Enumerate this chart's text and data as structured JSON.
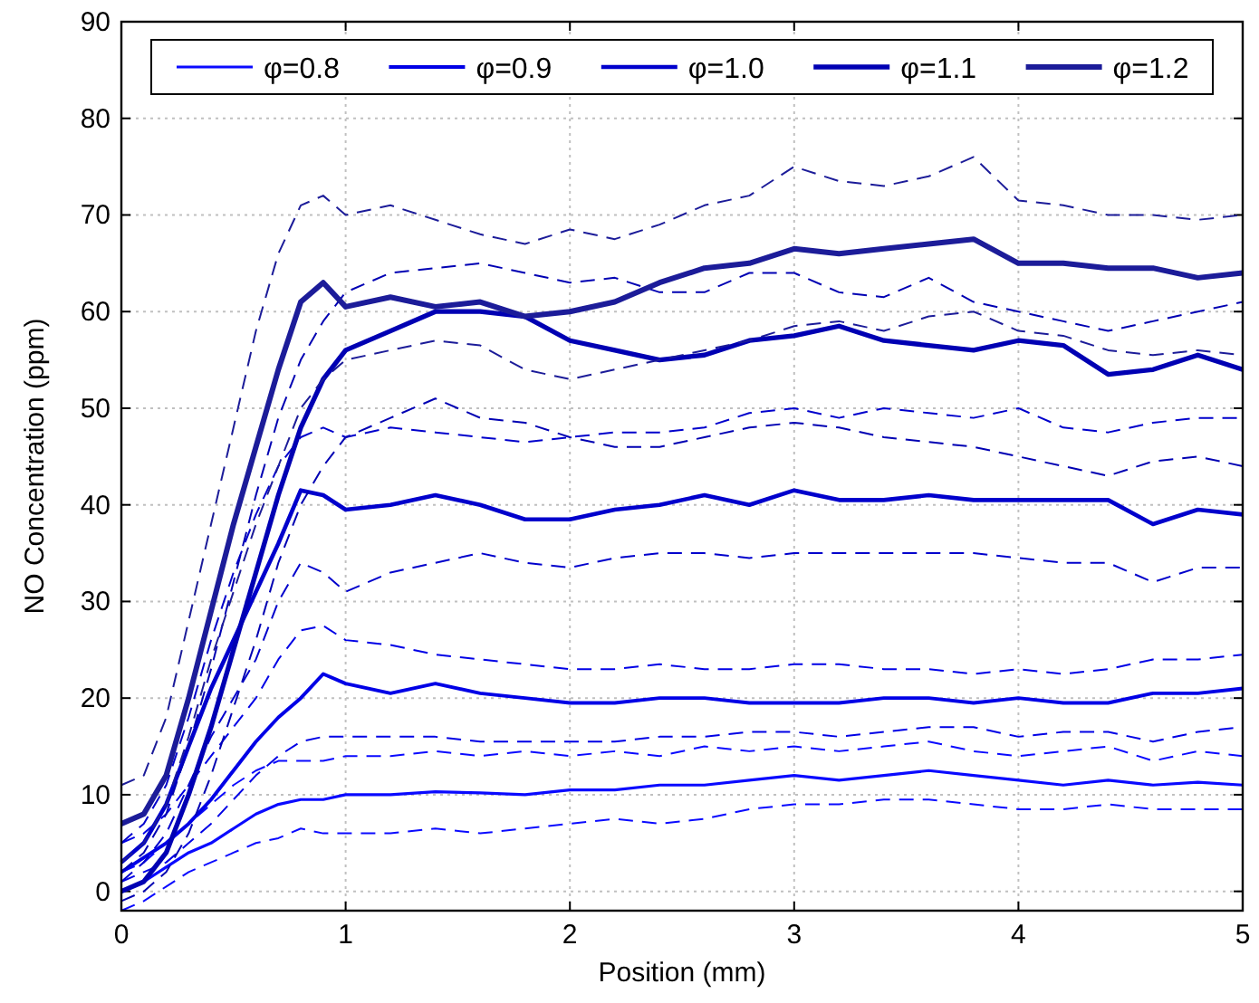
{
  "chart_data": {
    "type": "line",
    "xlabel": "Position (mm)",
    "ylabel": "NO Concentration (ppm)",
    "x": [
      0,
      0.1,
      0.2,
      0.3,
      0.4,
      0.5,
      0.6,
      0.7,
      0.8,
      0.9,
      1.0,
      1.2,
      1.4,
      1.6,
      1.8,
      2.0,
      2.2,
      2.4,
      2.6,
      2.8,
      3.0,
      3.2,
      3.4,
      3.6,
      3.8,
      4.0,
      4.2,
      4.4,
      4.6,
      4.8,
      5.0
    ],
    "xlim": [
      0,
      5
    ],
    "xticks": [
      0,
      1,
      2,
      3,
      4,
      5
    ],
    "ylim": [
      -2,
      90
    ],
    "yticks": [
      0,
      10,
      20,
      30,
      40,
      50,
      60,
      70,
      80,
      90
    ],
    "grid": true,
    "legend": "top",
    "line_style": "solid",
    "marker": "none",
    "series": [
      {
        "name": "φ=0.8",
        "color": "#0a0aff",
        "values": [
          0,
          1,
          2.5,
          4,
          5,
          6.5,
          8,
          9,
          9.5,
          9.5,
          10,
          10,
          10.3,
          10.2,
          10,
          10.5,
          10.5,
          11,
          11,
          11.5,
          12,
          11.5,
          12,
          12.5,
          12,
          11.5,
          11,
          11.5,
          11,
          11.3,
          11
        ]
      },
      {
        "color": "#0a0aff",
        "line_style": "dashed",
        "values": [
          -2,
          -1,
          0.5,
          2,
          3,
          4,
          5,
          5.5,
          6.5,
          6,
          6,
          6,
          6.5,
          6,
          6.5,
          7,
          7.5,
          7,
          7.5,
          8.5,
          9,
          9,
          9.5,
          9.5,
          9,
          8.5,
          8.5,
          9,
          8.5,
          8.5,
          8.5
        ]
      },
      {
        "color": "#0a0aff",
        "line_style": "dashed",
        "values": [
          2,
          3,
          5,
          7,
          9,
          11,
          12.5,
          13.5,
          13.5,
          13.5,
          14,
          14,
          14.5,
          14,
          14.5,
          14,
          14.5,
          14,
          15,
          14.5,
          15,
          14.5,
          15,
          15.5,
          14.5,
          14,
          14.5,
          15,
          13.5,
          14.5,
          14
        ]
      },
      {
        "name": "φ=0.9",
        "color": "#0000e6",
        "values": [
          2,
          3.5,
          5,
          7,
          9.5,
          12.5,
          15.5,
          18,
          20,
          22.5,
          21.5,
          20.5,
          21.5,
          20.5,
          20,
          19.5,
          19.5,
          20,
          20,
          19.5,
          19.5,
          19.5,
          20,
          20,
          19.5,
          20,
          19.5,
          19.5,
          20.5,
          20.5,
          21
        ]
      },
      {
        "color": "#0000e6",
        "line_style": "dashed",
        "values": [
          1,
          2,
          3,
          5,
          7,
          9.5,
          12,
          14,
          15.5,
          16,
          16,
          16,
          16,
          15.5,
          15.5,
          15.5,
          15.5,
          16,
          16,
          16.5,
          16.5,
          16,
          16.5,
          17,
          17,
          16,
          16.5,
          16.5,
          15.5,
          16.5,
          17
        ]
      },
      {
        "color": "#0000e6",
        "line_style": "dashed",
        "values": [
          5,
          6,
          8,
          11,
          14,
          17,
          20,
          24,
          27,
          27.5,
          26,
          25.5,
          24.5,
          24,
          23.5,
          23,
          23,
          23.5,
          23,
          23,
          23.5,
          23.5,
          23,
          23,
          22.5,
          23,
          22.5,
          23,
          24,
          24,
          24.5
        ]
      },
      {
        "name": "φ=1.0",
        "color": "#0000cc",
        "values": [
          3,
          5,
          9,
          15,
          21,
          26,
          31,
          36,
          41.5,
          41,
          39.5,
          40,
          41,
          40,
          38.5,
          38.5,
          39.5,
          40,
          41,
          40,
          41.5,
          40.5,
          40.5,
          41,
          40.5,
          40.5,
          40.5,
          40.5,
          38,
          39.5,
          39
        ]
      },
      {
        "color": "#0000cc",
        "line_style": "dashed",
        "values": [
          1,
          3,
          6,
          11,
          16,
          20,
          24,
          30,
          34,
          33,
          31,
          33,
          34,
          35,
          34,
          33.5,
          34.5,
          35,
          35,
          34.5,
          35,
          35,
          35,
          35,
          35,
          34.5,
          34,
          34,
          32,
          33.5,
          33.5
        ]
      },
      {
        "color": "#0000cc",
        "line_style": "dashed",
        "values": [
          5,
          7,
          11,
          18,
          26,
          33,
          39,
          44,
          47,
          48,
          47,
          48,
          47.5,
          47,
          46.5,
          47,
          47.5,
          47.5,
          48,
          49.5,
          50,
          49,
          50,
          49.5,
          49,
          50,
          48,
          47.5,
          48.5,
          49,
          49
        ]
      },
      {
        "name": "φ=1.1",
        "color": "#0000b3",
        "values": [
          0,
          1,
          4,
          10,
          17,
          25,
          33,
          41,
          48,
          53,
          56,
          58,
          60,
          60,
          59.5,
          57,
          56,
          55,
          55.5,
          57,
          57.5,
          58.5,
          57,
          56.5,
          56,
          57,
          56.5,
          53.5,
          54,
          55.5,
          54
        ]
      },
      {
        "color": "#0000b3",
        "line_style": "dashed",
        "values": [
          -1,
          0,
          2,
          6,
          12,
          19,
          26,
          34,
          40,
          44,
          47,
          49,
          51,
          49,
          48.5,
          47,
          46,
          46,
          47,
          48,
          48.5,
          48,
          47,
          46.5,
          46,
          45,
          44,
          43,
          44.5,
          45,
          44
        ]
      },
      {
        "color": "#0000b3",
        "line_style": "dashed",
        "values": [
          2,
          4,
          8,
          15,
          23,
          32,
          41,
          49,
          55,
          59,
          62,
          64,
          64.5,
          65,
          64,
          63,
          63.5,
          62,
          62,
          64,
          64,
          62,
          61.5,
          63.5,
          61,
          60,
          59,
          58,
          59,
          60,
          61
        ]
      },
      {
        "name": "φ=1.2",
        "color": "#1c1c99",
        "values": [
          7,
          8,
          12,
          20,
          29,
          38,
          46,
          54,
          61,
          63,
          60.5,
          61.5,
          60.5,
          61,
          59.5,
          60,
          61,
          63,
          64.5,
          65,
          66.5,
          66,
          66.5,
          67,
          67.5,
          65,
          65,
          64.5,
          64.5,
          63.5,
          64
        ]
      },
      {
        "color": "#1c1c99",
        "line_style": "dashed",
        "values": [
          3,
          5,
          9,
          16,
          24,
          31,
          38,
          44,
          50,
          53,
          55,
          56,
          57,
          56.5,
          54,
          53,
          54,
          55,
          56,
          57,
          58.5,
          59,
          58,
          59.5,
          60,
          58,
          57.5,
          56,
          55.5,
          56,
          55.5
        ]
      },
      {
        "color": "#1c1c99",
        "line_style": "dashed",
        "values": [
          11,
          12,
          18,
          28,
          38,
          48,
          58,
          66,
          71,
          72,
          70,
          71,
          69.5,
          68,
          67,
          68.5,
          67.5,
          69,
          71,
          72,
          75,
          73.5,
          73,
          74,
          76,
          71.5,
          71,
          70,
          70,
          69.5,
          70
        ]
      }
    ]
  }
}
